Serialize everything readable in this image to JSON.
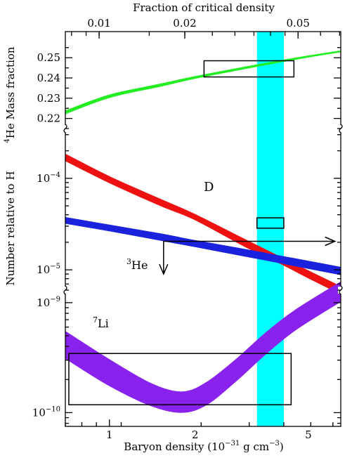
{
  "chart_data": {
    "type": "line",
    "top_axis": {
      "title": "Fraction of critical density",
      "ticks": [
        {
          "value": 0.01,
          "label": "0.01"
        },
        {
          "value": 0.02,
          "label": "0.02"
        },
        {
          "value": 0.05,
          "label": "0.05"
        }
      ]
    },
    "x_axis": {
      "title_main": "Baryon density (10",
      "title_exp1": "−31",
      "title_mid": " g cm",
      "title_exp2": "−3",
      "title_end": ")",
      "scale": "log",
      "range": [
        0.7,
        6.5
      ],
      "ticks": [
        {
          "value": 1,
          "label": "1"
        },
        {
          "value": 2,
          "label": "2"
        },
        {
          "value": 5,
          "label": "5"
        }
      ]
    },
    "panels": [
      {
        "id": "he4",
        "ylabel_sup": "4",
        "ylabel": "He Mass fraction",
        "scale": "linear",
        "range": [
          0.215,
          0.257
        ],
        "ticks": [
          {
            "value": 0.22,
            "label": "0.22"
          },
          {
            "value": 0.23,
            "label": "0.23"
          },
          {
            "value": 0.24,
            "label": "0.24"
          },
          {
            "value": 0.25,
            "label": "0.25"
          }
        ]
      },
      {
        "id": "dhe3",
        "ylabel": "Number relative to H",
        "scale": "log",
        "range": [
          6e-06,
          0.00035
        ],
        "ticks": [
          {
            "value": 0.0001,
            "base": "10",
            "exp": "−4"
          },
          {
            "value": 1e-05,
            "base": "10",
            "exp": "−5"
          }
        ]
      },
      {
        "id": "li7",
        "scale": "log",
        "range": [
          7.5e-11,
          1.3e-09
        ],
        "ticks": [
          {
            "value": 1e-09,
            "base": "10",
            "exp": "−9"
          },
          {
            "value": 1e-10,
            "base": "10",
            "exp": "−10"
          }
        ]
      }
    ],
    "series": [
      {
        "name": "He",
        "name_sup": "4",
        "panel": "he4",
        "color": "#22ee22",
        "x": [
          0.7,
          1.0,
          1.5,
          2.0,
          3.0,
          4.0,
          5.0,
          6.5
        ],
        "low": [
          0.2222,
          0.2302,
          0.2357,
          0.2397,
          0.2445,
          0.2478,
          0.2502,
          0.2528
        ],
        "high": [
          0.2238,
          0.2317,
          0.237,
          0.2408,
          0.2455,
          0.2487,
          0.251,
          0.2535
        ]
      },
      {
        "name": "D",
        "panel": "dhe3",
        "color": "#ee1111",
        "x": [
          0.7,
          1.0,
          1.5,
          2.0,
          3.0,
          4.0,
          5.0,
          6.5
        ],
        "low": [
          0.000155,
          8.9e-05,
          5.05e-05,
          3.5e-05,
          1.78e-05,
          1.16e-05,
          8.1e-06,
          5.4e-06
        ],
        "high": [
          0.000185,
          0.000105,
          6e-05,
          4.05e-05,
          2.15e-05,
          1.38e-05,
          9.8e-06,
          6.6e-06
        ]
      },
      {
        "name": "He",
        "name_sup": "3",
        "panel": "dhe3",
        "color": "#1a22dd",
        "x": [
          0.7,
          1.0,
          1.5,
          2.0,
          3.0,
          4.0,
          5.0,
          6.5
        ],
        "low": [
          3.2e-05,
          2.65e-05,
          2.1e-05,
          1.78e-05,
          1.4e-05,
          1.18e-05,
          1.03e-05,
          8.8e-06
        ],
        "high": [
          3.75e-05,
          3.1e-05,
          2.5e-05,
          2.1e-05,
          1.68e-05,
          1.42e-05,
          1.25e-05,
          1.07e-05
        ]
      },
      {
        "name": "Li",
        "name_sup": "7",
        "panel": "li7",
        "color": "#8a22ee",
        "x": [
          0.7,
          1.0,
          1.4,
          1.8,
          2.2,
          2.8,
          3.5,
          4.5,
          6.5
        ],
        "low": [
          3.1e-10,
          1.75e-10,
          1.15e-10,
          1e-10,
          1.18e-10,
          1.95e-10,
          3.3e-10,
          5.6e-10,
          1.02e-09
        ],
        "high": [
          5.5e-10,
          3.05e-10,
          1.85e-10,
          1.55e-10,
          1.9e-10,
          3.1e-10,
          5.2e-10,
          8.6e-10,
          1.55e-09
        ]
      }
    ],
    "band": {
      "x_range": [
        3.3,
        4.1
      ],
      "color": "#00ffff"
    },
    "boxes": [
      {
        "panel": "he4",
        "x_range": [
          2.15,
          4.45
        ],
        "y_range": [
          0.2405,
          0.2485
        ]
      },
      {
        "panel": "dhe3",
        "x_range": [
          3.3,
          4.1
        ],
        "y_range": [
          2.85e-05,
          3.7e-05
        ]
      },
      {
        "panel": "li7",
        "x_range": [
          0.72,
          4.35
        ],
        "y_range": [
          1.18e-10,
          3.45e-10
        ]
      }
    ],
    "limits": [
      {
        "panel": "dhe3",
        "type": "lower-x",
        "x_from": 1.55,
        "x_to": 6.2,
        "y": 2.05e-05
      },
      {
        "panel": "dhe3",
        "type": "upper-y",
        "x": 1.55,
        "y_from": 2.05e-05,
        "y_to": 9e-06
      }
    ]
  }
}
